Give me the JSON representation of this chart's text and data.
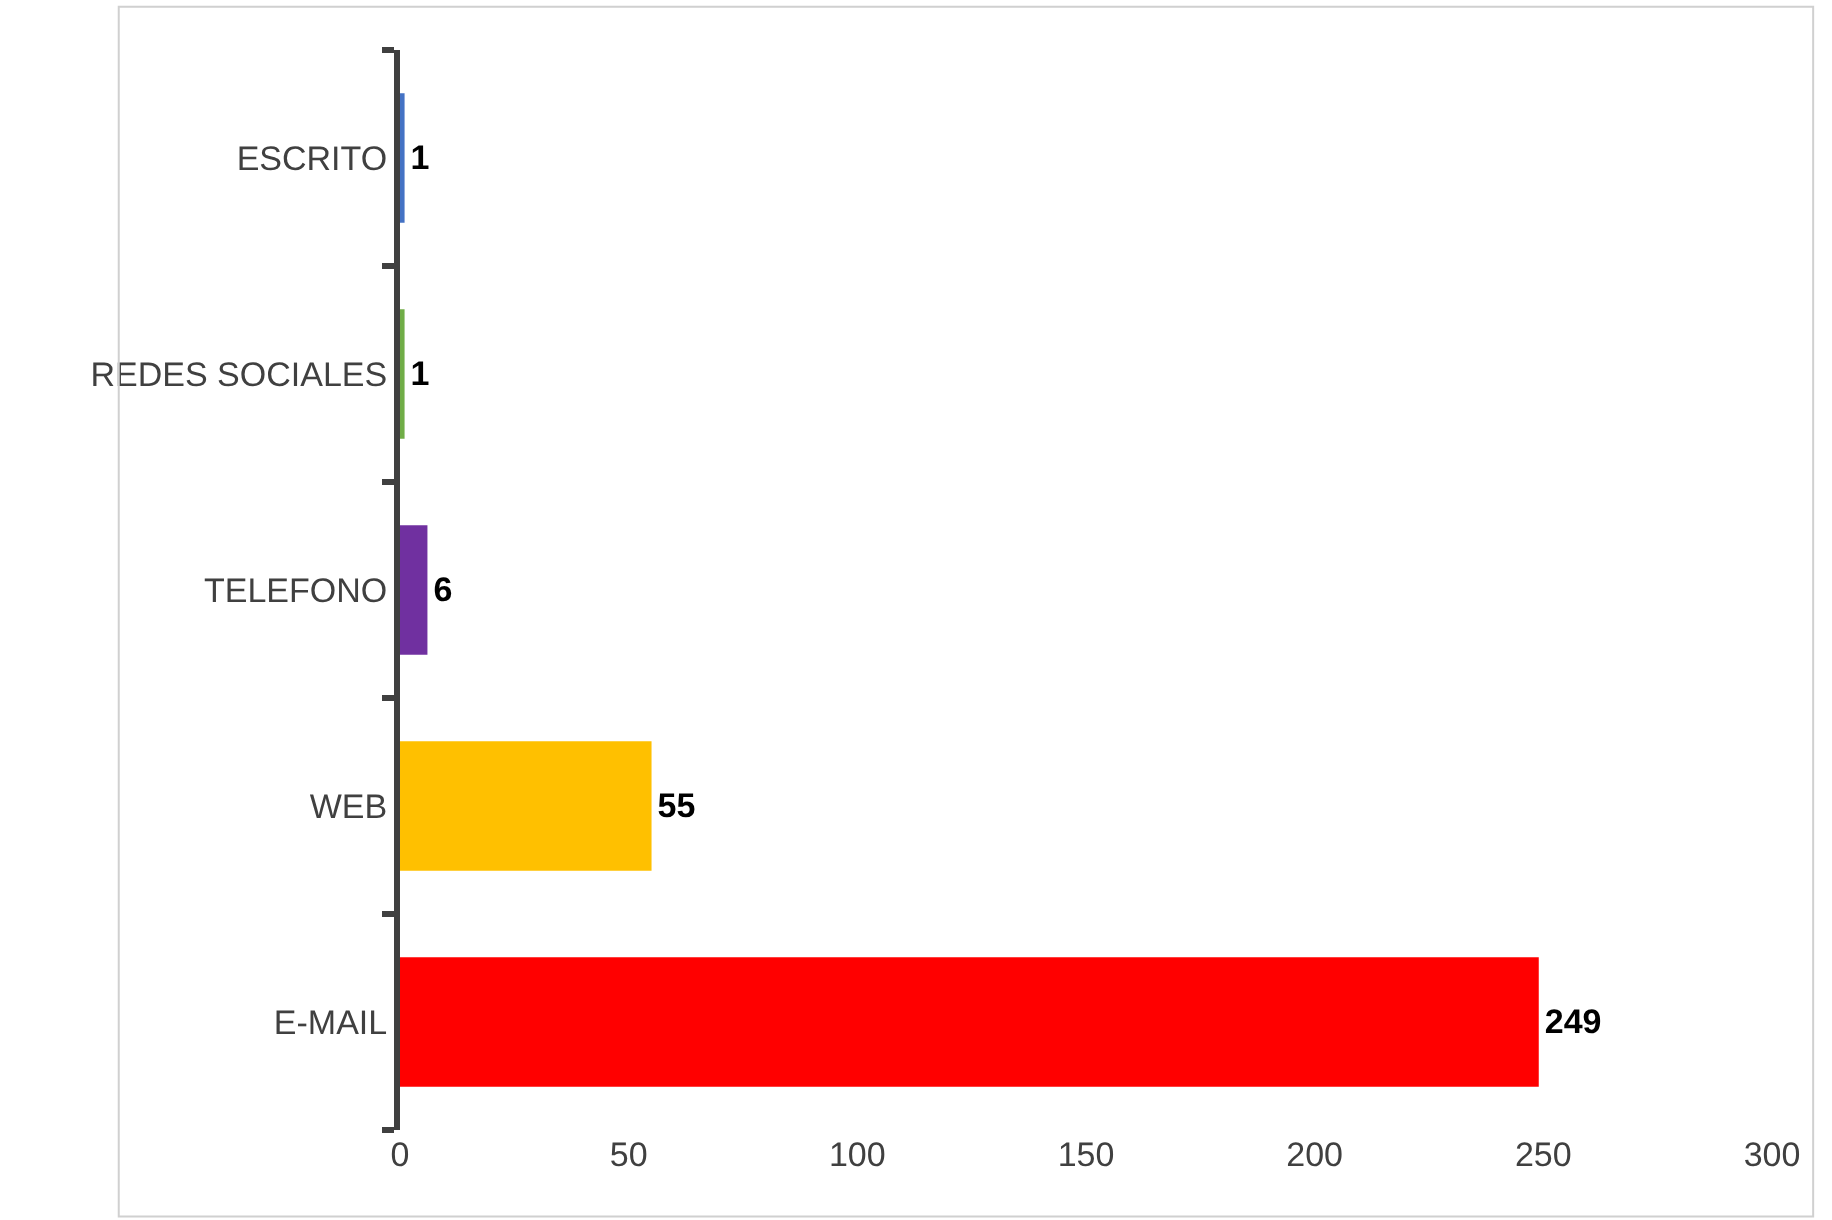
{
  "chart_data": {
    "type": "bar",
    "orientation": "horizontal",
    "categories": [
      "ESCRITO",
      "REDES SOCIALES",
      "TELEFONO",
      "WEB",
      "E-MAIL"
    ],
    "values": [
      1,
      1,
      6,
      55,
      249
    ],
    "colors": [
      "#4472c4",
      "#70ad47",
      "#7030a0",
      "#ffc000",
      "#ff0000"
    ],
    "xlim": [
      0,
      300
    ],
    "xticks": [
      0,
      50,
      100,
      150,
      200,
      250,
      300
    ],
    "grid": false,
    "data_labels": true
  }
}
